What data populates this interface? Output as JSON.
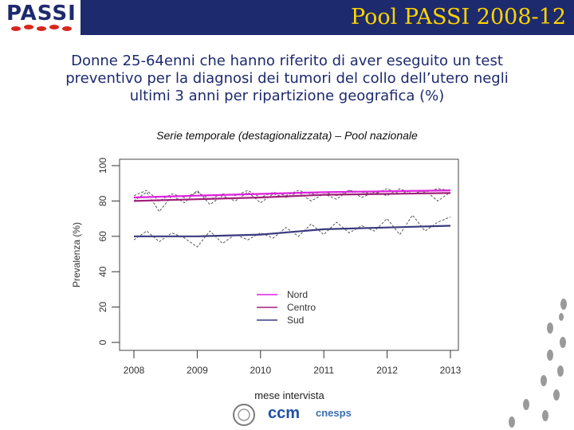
{
  "header": {
    "logo_text": "PASSI",
    "title": "Pool PASSI 2008-12"
  },
  "subtitle_lines": [
    "Donne 25-64enni che hanno riferito di aver eseguito un test",
    "preventivo per la diagnosi dei tumori del collo dell’utero negli",
    "ultimi 3 anni per ripartizione geografica (%)"
  ],
  "footer": {
    "logo_ccm": "ccm",
    "logo_cnesps": "cnesps"
  },
  "colors": {
    "header_bg": "#1d2a6e",
    "header_text": "#ffd400",
    "nord": "#e020e0",
    "centro": "#a0207a",
    "sud": "#3a3a80",
    "raw": "#555555"
  },
  "chart_data": {
    "type": "line",
    "title": "Serie temporale (destagionalizzata) – Pool nazionale",
    "xlabel": "mese intervista",
    "ylabel": "Prevalenza (%)",
    "ylim": [
      0,
      100
    ],
    "xlim": [
      2008,
      2013
    ],
    "x_ticks": [
      "2008",
      "2009",
      "2010",
      "2011",
      "2012",
      "2013"
    ],
    "y_ticks": [
      "0",
      "20",
      "40",
      "60",
      "80",
      "100"
    ],
    "legend": {
      "placement": "bottom-center",
      "entries": [
        "Nord",
        "Centro",
        "Sud"
      ]
    },
    "series": [
      {
        "name": "Nord",
        "color": "#e020e0",
        "trend": [
          [
            2008,
            82
          ],
          [
            2009,
            83
          ],
          [
            2010,
            84
          ],
          [
            2011,
            85
          ],
          [
            2012,
            85.5
          ],
          [
            2013,
            86
          ]
        ],
        "raw": [
          [
            2008.0,
            83
          ],
          [
            2008.2,
            86
          ],
          [
            2008.4,
            80
          ],
          [
            2008.6,
            84
          ],
          [
            2008.8,
            82
          ],
          [
            2009.0,
            85
          ],
          [
            2009.2,
            81
          ],
          [
            2009.4,
            84
          ],
          [
            2009.6,
            83
          ],
          [
            2009.8,
            86
          ],
          [
            2010.0,
            82
          ],
          [
            2010.2,
            85
          ],
          [
            2010.4,
            83
          ],
          [
            2010.6,
            86
          ],
          [
            2010.8,
            84
          ],
          [
            2011.0,
            85
          ],
          [
            2011.2,
            83
          ],
          [
            2011.4,
            86
          ],
          [
            2011.6,
            85
          ],
          [
            2011.8,
            84
          ],
          [
            2012.0,
            87
          ],
          [
            2012.2,
            84
          ],
          [
            2012.4,
            86
          ],
          [
            2012.6,
            85
          ],
          [
            2012.8,
            87
          ],
          [
            2013.0,
            86
          ]
        ]
      },
      {
        "name": "Centro",
        "color": "#a0207a",
        "trend": [
          [
            2008,
            80
          ],
          [
            2009,
            81
          ],
          [
            2010,
            82
          ],
          [
            2011,
            83.5
          ],
          [
            2012,
            84
          ],
          [
            2013,
            84.5
          ]
        ],
        "raw": [
          [
            2008.0,
            80
          ],
          [
            2008.2,
            85
          ],
          [
            2008.4,
            74
          ],
          [
            2008.6,
            83
          ],
          [
            2008.8,
            79
          ],
          [
            2009.0,
            86
          ],
          [
            2009.2,
            78
          ],
          [
            2009.4,
            83
          ],
          [
            2009.6,
            80
          ],
          [
            2009.8,
            85
          ],
          [
            2010.0,
            79
          ],
          [
            2010.2,
            84
          ],
          [
            2010.4,
            82
          ],
          [
            2010.6,
            85
          ],
          [
            2010.8,
            80
          ],
          [
            2011.0,
            84
          ],
          [
            2011.2,
            81
          ],
          [
            2011.4,
            86
          ],
          [
            2011.6,
            82
          ],
          [
            2011.8,
            85
          ],
          [
            2012.0,
            83
          ],
          [
            2012.2,
            87
          ],
          [
            2012.4,
            84
          ],
          [
            2012.6,
            86
          ],
          [
            2012.8,
            80
          ],
          [
            2013.0,
            85
          ]
        ]
      },
      {
        "name": "Sud",
        "color": "#3a3a80",
        "trend": [
          [
            2008,
            60
          ],
          [
            2009,
            60
          ],
          [
            2010,
            61
          ],
          [
            2011,
            64
          ],
          [
            2012,
            65
          ],
          [
            2013,
            66
          ]
        ],
        "raw": [
          [
            2008.0,
            58
          ],
          [
            2008.2,
            63
          ],
          [
            2008.4,
            57
          ],
          [
            2008.6,
            62
          ],
          [
            2008.8,
            59
          ],
          [
            2009.0,
            54
          ],
          [
            2009.2,
            63
          ],
          [
            2009.4,
            56
          ],
          [
            2009.6,
            61
          ],
          [
            2009.8,
            58
          ],
          [
            2010.0,
            62
          ],
          [
            2010.2,
            59
          ],
          [
            2010.4,
            65
          ],
          [
            2010.6,
            60
          ],
          [
            2010.8,
            67
          ],
          [
            2011.0,
            61
          ],
          [
            2011.2,
            68
          ],
          [
            2011.4,
            62
          ],
          [
            2011.6,
            66
          ],
          [
            2011.8,
            63
          ],
          [
            2012.0,
            70
          ],
          [
            2012.2,
            61
          ],
          [
            2012.4,
            72
          ],
          [
            2012.6,
            63
          ],
          [
            2012.8,
            68
          ],
          [
            2013.0,
            71
          ]
        ]
      }
    ]
  }
}
